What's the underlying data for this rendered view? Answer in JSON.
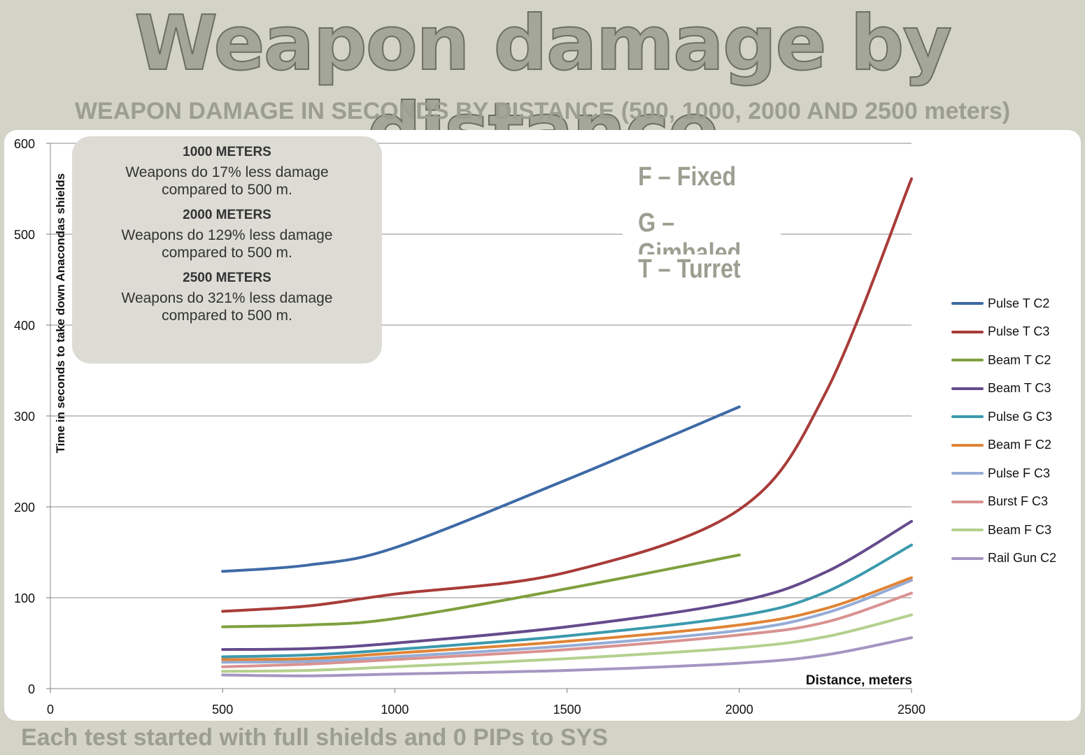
{
  "title": "Weapon damage by distance",
  "subtitle": "WEAPON DAMAGE IN SECONDS BY DISTANCE (500, 1000, 2000 AND 2500 meters)",
  "footer": "Each test started with full shields and 0 PIPs to SYS",
  "info_box": {
    "sections": [
      {
        "heading": "1000 METERS",
        "line1": "Weapons do 17% less damage",
        "line2": "compared to 500 m."
      },
      {
        "heading": "2000 METERS",
        "line1": "Weapons do 129% less damage",
        "line2": "compared to 500 m."
      },
      {
        "heading": "2500 METERS",
        "line1": "Weapons do 321% less damage",
        "line2": "compared to 500 m."
      }
    ]
  },
  "abbreviations": [
    "F – Fixed",
    "G – Gimbaled",
    "T – Turret"
  ],
  "colors": {
    "background": "#d4d3c8",
    "panel": "#ffffff",
    "title_fill": "#a4a699",
    "grid": "#8a8a8a"
  },
  "chart_data": {
    "type": "line",
    "xlabel": "Distance, meters",
    "ylabel": "Time in seconds to take down Anacondas shields",
    "xlim": [
      0,
      2500
    ],
    "ylim": [
      0,
      600
    ],
    "x_ticks": [
      "0",
      "500",
      "1000",
      "1500",
      "2000",
      "2500"
    ],
    "y_ticks": [
      "0",
      "100",
      "200",
      "300",
      "400",
      "500",
      "600"
    ],
    "grid": "horizontal",
    "legend_position": "right",
    "series": [
      {
        "name": "Pulse T C2",
        "color": "#3e6aa6",
        "points": [
          [
            500,
            129
          ],
          [
            750,
            136
          ],
          [
            1000,
            155
          ],
          [
            1500,
            230
          ],
          [
            2000,
            310
          ]
        ]
      },
      {
        "name": "Pulse T C3",
        "color": "#a83c39",
        "points": [
          [
            500,
            85
          ],
          [
            750,
            91
          ],
          [
            1000,
            104
          ],
          [
            1500,
            128
          ],
          [
            2000,
            197
          ],
          [
            2250,
            325
          ],
          [
            2500,
            561
          ]
        ]
      },
      {
        "name": "Beam T C2",
        "color": "#7fa03e",
        "points": [
          [
            500,
            68
          ],
          [
            750,
            70
          ],
          [
            1000,
            77
          ],
          [
            1500,
            110
          ],
          [
            2000,
            147
          ]
        ]
      },
      {
        "name": "Beam T C3",
        "color": "#654b8c",
        "points": [
          [
            500,
            43
          ],
          [
            750,
            44
          ],
          [
            1000,
            50
          ],
          [
            1500,
            68
          ],
          [
            2000,
            96
          ],
          [
            2250,
            128
          ],
          [
            2500,
            184
          ]
        ]
      },
      {
        "name": "Pulse G C3",
        "color": "#3b9aad",
        "points": [
          [
            500,
            35
          ],
          [
            750,
            37
          ],
          [
            1000,
            43
          ],
          [
            1500,
            58
          ],
          [
            2000,
            80
          ],
          [
            2250,
            106
          ],
          [
            2500,
            158
          ]
        ]
      },
      {
        "name": "Beam F C2",
        "color": "#e08436",
        "points": [
          [
            500,
            32
          ],
          [
            750,
            33
          ],
          [
            1000,
            39
          ],
          [
            1500,
            52
          ],
          [
            2000,
            70
          ],
          [
            2250,
            88
          ],
          [
            2500,
            122
          ]
        ]
      },
      {
        "name": "Pulse F C3",
        "color": "#95acd6",
        "points": [
          [
            500,
            29
          ],
          [
            750,
            30
          ],
          [
            1000,
            35
          ],
          [
            1500,
            47
          ],
          [
            2000,
            64
          ],
          [
            2250,
            83
          ],
          [
            2500,
            119
          ]
        ]
      },
      {
        "name": "Burst F C3",
        "color": "#d99290",
        "points": [
          [
            500,
            24
          ],
          [
            750,
            27
          ],
          [
            1000,
            32
          ],
          [
            1500,
            43
          ],
          [
            2000,
            59
          ],
          [
            2250,
            73
          ],
          [
            2500,
            105
          ]
        ]
      },
      {
        "name": "Beam F C3",
        "color": "#b4d08e",
        "points": [
          [
            500,
            19
          ],
          [
            750,
            20
          ],
          [
            1000,
            24
          ],
          [
            1500,
            33
          ],
          [
            2000,
            45
          ],
          [
            2250,
            57
          ],
          [
            2500,
            81
          ]
        ]
      },
      {
        "name": "Rail Gun C2",
        "color": "#a596c2",
        "points": [
          [
            500,
            15
          ],
          [
            750,
            14
          ],
          [
            1000,
            16
          ],
          [
            1500,
            20
          ],
          [
            2000,
            28
          ],
          [
            2250,
            37
          ],
          [
            2500,
            56
          ]
        ]
      }
    ]
  }
}
